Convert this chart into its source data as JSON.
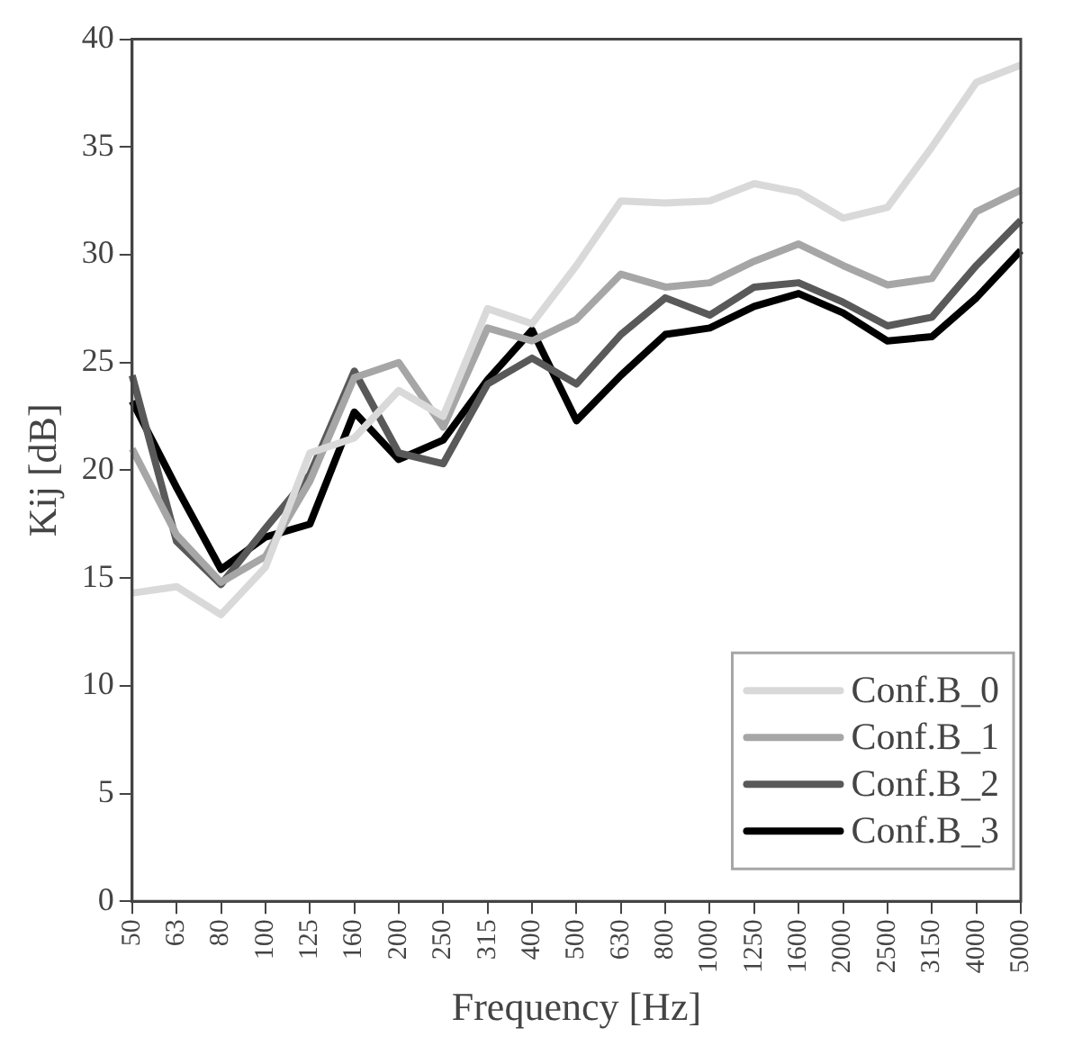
{
  "chart_data": {
    "type": "line",
    "xlabel": "Frequency [Hz]",
    "ylabel": "Kij [dB]",
    "categories": [
      "50",
      "63",
      "80",
      "100",
      "125",
      "160",
      "200",
      "250",
      "315",
      "400",
      "500",
      "630",
      "800",
      "1000",
      "1250",
      "1600",
      "2000",
      "2500",
      "3150",
      "4000",
      "5000"
    ],
    "series": [
      {
        "name": "Conf.B_0",
        "color": "#d9d9d9",
        "values": [
          14.3,
          14.6,
          13.3,
          15.5,
          20.8,
          21.5,
          23.7,
          22.5,
          27.5,
          26.8,
          29.5,
          32.5,
          32.4,
          32.5,
          33.3,
          32.9,
          31.7,
          32.2,
          35,
          38,
          38.8
        ]
      },
      {
        "name": "Conf.B_1",
        "color": "#a6a6a6",
        "values": [
          21,
          17,
          14.8,
          16,
          19.5,
          24.3,
          25,
          22,
          26.6,
          26,
          27,
          29.1,
          28.5,
          28.7,
          29.7,
          30.5,
          29.5,
          28.6,
          28.9,
          32,
          33
        ]
      },
      {
        "name": "Conf.B_2",
        "color": "#595959",
        "values": [
          24.4,
          16.7,
          14.7,
          17.3,
          19.8,
          24.6,
          20.8,
          20.3,
          24,
          25.2,
          24,
          26.3,
          28,
          27.2,
          28.5,
          28.7,
          27.8,
          26.7,
          27.1,
          29.5,
          31.6
        ]
      },
      {
        "name": "Conf.B_3",
        "color": "#000000",
        "values": [
          23.2,
          19.2,
          15.4,
          16.9,
          17.5,
          22.7,
          20.5,
          21.4,
          24.2,
          26.5,
          22.3,
          24.4,
          26.3,
          26.6,
          27.6,
          28.2,
          27.3,
          26,
          26.2,
          28,
          30.2
        ]
      }
    ],
    "ylim": [
      0,
      40
    ],
    "yticks": [
      0,
      5,
      10,
      15,
      20,
      25,
      30,
      35,
      40
    ],
    "grid": false,
    "legend": "bottom right",
    "marker": "none",
    "line_style": "solid"
  }
}
